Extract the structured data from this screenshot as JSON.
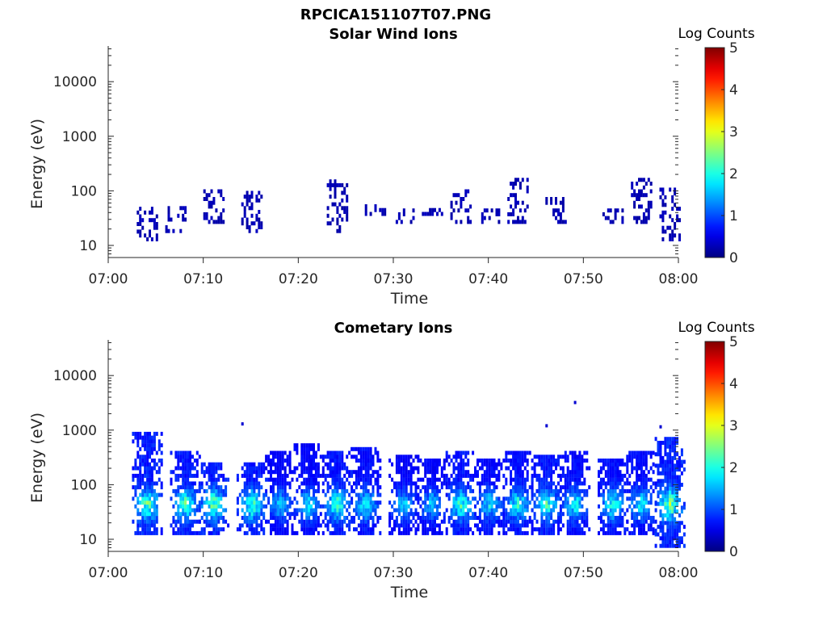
{
  "figure": {
    "filename": "RPCICA151107T07.PNG"
  },
  "chart_data": [
    {
      "type": "heatmap",
      "title": "Solar Wind Ions",
      "xlabel": "Time",
      "ylabel": "Energy (eV)",
      "x_ticks": [
        "07:00",
        "07:10",
        "07:20",
        "07:30",
        "07:40",
        "07:50",
        "08:00"
      ],
      "xlim": [
        "07:00",
        "08:00"
      ],
      "y_ticks": [
        "10",
        "100",
        "1000",
        "10000"
      ],
      "ylim": [
        6,
        45000
      ],
      "y_scale": "log",
      "colorbar": {
        "label": "Log Counts",
        "ticks": [
          "0",
          "1",
          "2",
          "3",
          "4",
          "5"
        ],
        "range": [
          0,
          5
        ],
        "colormap": "jet"
      },
      "grid": false,
      "bursts": [
        {
          "t": "07:04",
          "e_lo": 12,
          "e_hi": 45,
          "level": 0.3
        },
        {
          "t": "07:07",
          "e_lo": 17,
          "e_hi": 45,
          "level": 0.3
        },
        {
          "t": "07:11",
          "e_lo": 25,
          "e_hi": 100,
          "level": 0.3
        },
        {
          "t": "07:15",
          "e_lo": 17,
          "e_hi": 100,
          "level": 0.3
        },
        {
          "t": "07:24",
          "e_lo": 17,
          "e_hi": 150,
          "level": 0.3
        },
        {
          "t": "07:28",
          "e_lo": 35,
          "e_hi": 55,
          "level": 0.3
        },
        {
          "t": "07:31",
          "e_lo": 25,
          "e_hi": 45,
          "level": 0.3
        },
        {
          "t": "07:34",
          "e_lo": 35,
          "e_hi": 55,
          "level": 0.3
        },
        {
          "t": "07:37",
          "e_lo": 25,
          "e_hi": 100,
          "level": 0.3
        },
        {
          "t": "07:40",
          "e_lo": 25,
          "e_hi": 45,
          "level": 0.3
        },
        {
          "t": "07:43",
          "e_lo": 25,
          "e_hi": 150,
          "level": 0.3
        },
        {
          "t": "07:47",
          "e_lo": 25,
          "e_hi": 70,
          "level": 0.3
        },
        {
          "t": "07:53",
          "e_lo": 25,
          "e_hi": 45,
          "level": 0.3
        },
        {
          "t": "07:56",
          "e_lo": 25,
          "e_hi": 150,
          "level": 0.3
        },
        {
          "t": "07:59",
          "e_lo": 12,
          "e_hi": 100,
          "level": 0.3
        }
      ]
    },
    {
      "type": "heatmap",
      "title": "Cometary Ions",
      "xlabel": "Time",
      "ylabel": "Energy (eV)",
      "x_ticks": [
        "07:00",
        "07:10",
        "07:20",
        "07:30",
        "07:40",
        "07:50",
        "08:00"
      ],
      "xlim": [
        "07:00",
        "08:00"
      ],
      "y_ticks": [
        "10",
        "100",
        "1000",
        "10000"
      ],
      "ylim": [
        6,
        45000
      ],
      "y_scale": "log",
      "colorbar": {
        "label": "Log Counts",
        "ticks": [
          "0",
          "1",
          "2",
          "3",
          "4",
          "5"
        ],
        "range": [
          0,
          5
        ],
        "colormap": "jet"
      },
      "grid": false,
      "bursts": [
        {
          "t": "07:04",
          "e_lo": 12,
          "e_hi": 800,
          "level": 1.8
        },
        {
          "t": "07:08",
          "e_lo": 12,
          "e_hi": 400,
          "level": 1.7
        },
        {
          "t": "07:11",
          "e_lo": 12,
          "e_hi": 250,
          "level": 1.8
        },
        {
          "t": "07:15",
          "e_lo": 12,
          "e_hi": 250,
          "level": 1.7
        },
        {
          "t": "07:18",
          "e_lo": 12,
          "e_hi": 400,
          "level": 1.2
        },
        {
          "t": "07:21",
          "e_lo": 12,
          "e_hi": 550,
          "level": 1.3
        },
        {
          "t": "07:24",
          "e_lo": 12,
          "e_hi": 400,
          "level": 1.6
        },
        {
          "t": "07:27",
          "e_lo": 12,
          "e_hi": 450,
          "level": 1.4
        },
        {
          "t": "07:31",
          "e_lo": 12,
          "e_hi": 350,
          "level": 1.2
        },
        {
          "t": "07:34",
          "e_lo": 12,
          "e_hi": 300,
          "level": 1.2
        },
        {
          "t": "07:37",
          "e_lo": 12,
          "e_hi": 400,
          "level": 1.6
        },
        {
          "t": "07:40",
          "e_lo": 12,
          "e_hi": 300,
          "level": 1.3
        },
        {
          "t": "07:43",
          "e_lo": 12,
          "e_hi": 400,
          "level": 1.5
        },
        {
          "t": "07:46",
          "e_lo": 12,
          "e_hi": 350,
          "level": 1.6
        },
        {
          "t": "07:49",
          "e_lo": 12,
          "e_hi": 400,
          "level": 1.4
        },
        {
          "t": "07:53",
          "e_lo": 12,
          "e_hi": 300,
          "level": 1.5
        },
        {
          "t": "07:56",
          "e_lo": 12,
          "e_hi": 400,
          "level": 1.4
        },
        {
          "t": "07:59",
          "e_lo": 7,
          "e_hi": 700,
          "level": 1.9
        }
      ],
      "isolated_points": [
        {
          "t": "07:14",
          "e": 1300
        },
        {
          "t": "07:46",
          "e": 1200
        },
        {
          "t": "07:49",
          "e": 3200
        },
        {
          "t": "07:58",
          "e": 1150
        }
      ]
    }
  ]
}
